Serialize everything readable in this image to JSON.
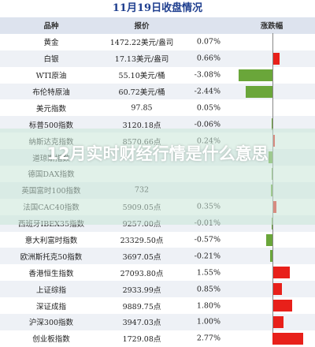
{
  "title": "11月19日收盘情况",
  "header": {
    "name": "品种",
    "price": "报价",
    "change": "",
    "bar": "涨跌幅"
  },
  "rows": [
    {
      "name": "黄金",
      "price": "1472.22美元/盎司",
      "change": "0.07%",
      "pct": 0.07
    },
    {
      "name": "白银",
      "price": "17.13美元/盎司",
      "change": "0.66%",
      "pct": 0.66
    },
    {
      "name": "WTI原油",
      "price": "55.10美元/桶",
      "change": "-3.08%",
      "pct": -3.08
    },
    {
      "name": "布伦特原油",
      "price": "60.72美元/桶",
      "change": "-2.44%",
      "pct": -2.44
    },
    {
      "name": "美元指数",
      "price": "97.85",
      "change": "0.05%",
      "pct": 0.05
    },
    {
      "name": "标普500指数",
      "price": "3120.18点",
      "change": "-0.06%",
      "pct": -0.06
    },
    {
      "name": "纳斯达克指数",
      "price": "8570.66点",
      "change": "0.24%",
      "pct": 0.24
    },
    {
      "name": "道琼斯指数",
      "price": "",
      "change": "",
      "pct": -0.36
    },
    {
      "name": "德国DAX指数",
      "price": "",
      "change": "",
      "pct": -0.04
    },
    {
      "name": "英国富时100指数",
      "price": "732",
      "change": "",
      "pct": -0.13
    },
    {
      "name": "法国CAC40指数",
      "price": "5909.05点",
      "change": "0.35%",
      "pct": 0.35
    },
    {
      "name": "西班牙IBEX35指数",
      "price": "9257.00点",
      "change": "-0.01%",
      "pct": -0.01
    },
    {
      "name": "意大利富时指数",
      "price": "23329.50点",
      "change": "-0.57%",
      "pct": -0.57
    },
    {
      "name": "欧洲斯托克50指数",
      "price": "3697.05点",
      "change": "-0.21%",
      "pct": -0.21
    },
    {
      "name": "香港恒生指数",
      "price": "27093.80点",
      "change": "1.55%",
      "pct": 1.55
    },
    {
      "name": "上证综指",
      "price": "2933.99点",
      "change": "0.85%",
      "pct": 0.85
    },
    {
      "name": "深证成指",
      "price": "9889.75点",
      "change": "1.80%",
      "pct": 1.8
    },
    {
      "name": "沪深300指数",
      "price": "3947.03点",
      "change": "1.00%",
      "pct": 1.0
    },
    {
      "name": "创业板指数",
      "price": "1729.08点",
      "change": "2.77%",
      "pct": 2.77
    }
  ],
  "headline": "12月实时财经行情是什么意思",
  "colors": {
    "positive": "#e8201a",
    "negative": "#6aa63a",
    "title": "#1f3f8f"
  }
}
